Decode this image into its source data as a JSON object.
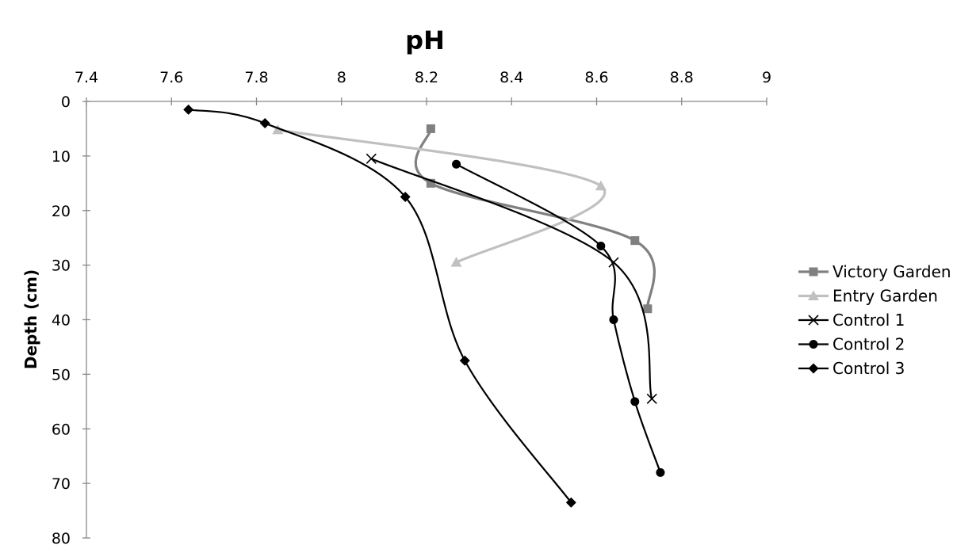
{
  "chart_data": {
    "type": "line",
    "title": "",
    "xlabel": "pH",
    "ylabel": "Depth (cm)",
    "xlim": [
      7.4,
      9
    ],
    "ylim": [
      0,
      80
    ],
    "x_axis_position": "top",
    "y_axis_inverted": true,
    "grid": false,
    "legend_position": "right",
    "x_ticks": [
      "7.4",
      "7.6",
      "7.8",
      "8",
      "8.2",
      "8.4",
      "8.6",
      "8.8",
      "9"
    ],
    "y_ticks": [
      "0",
      "10",
      "20",
      "30",
      "40",
      "50",
      "60",
      "70",
      "80"
    ],
    "series": [
      {
        "name": "Victory Garden",
        "color": "#808080",
        "marker": "square",
        "points": [
          [
            8.21,
            5
          ],
          [
            8.21,
            15
          ],
          [
            8.69,
            25.5
          ],
          [
            8.72,
            38
          ]
        ]
      },
      {
        "name": "Entry Garden",
        "color": "#c0c0c0",
        "marker": "triangle",
        "points": [
          [
            7.85,
            5.2
          ],
          [
            8.61,
            15.5
          ],
          [
            8.27,
            29.5
          ]
        ]
      },
      {
        "name": "Control 1",
        "color": "#000000",
        "marker": "x",
        "points": [
          [
            8.07,
            10.5
          ],
          [
            8.64,
            29.5
          ],
          [
            8.73,
            54.5
          ]
        ]
      },
      {
        "name": "Control 2",
        "color": "#000000",
        "marker": "circle",
        "points": [
          [
            8.27,
            11.5
          ],
          [
            8.61,
            26.5
          ],
          [
            8.64,
            40
          ],
          [
            8.69,
            55
          ],
          [
            8.75,
            68
          ]
        ]
      },
      {
        "name": "Control 3",
        "color": "#000000",
        "marker": "diamond",
        "points": [
          [
            7.64,
            1.5
          ],
          [
            7.82,
            4
          ],
          [
            8.15,
            17.5
          ],
          [
            8.29,
            47.5
          ],
          [
            8.54,
            73.5
          ]
        ]
      }
    ]
  }
}
